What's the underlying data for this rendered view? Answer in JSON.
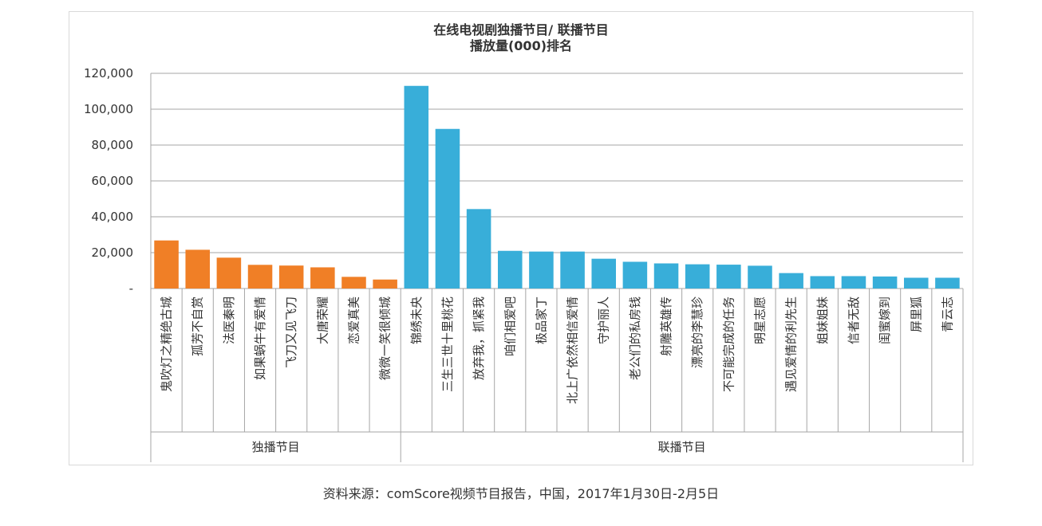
{
  "chart_data": {
    "type": "bar",
    "title": [
      "在线电视剧独播节目/ 联播节目",
      "播放量(000)排名"
    ],
    "y_ticks": [
      "-",
      "20,000",
      "40,000",
      "60,000",
      "80,000",
      "100,000",
      "120,000"
    ],
    "ylim": [
      0,
      120000
    ],
    "grid": true,
    "categories": [
      "鬼吹灯之精绝古城",
      "孤芳不自赏",
      "法医秦明",
      "如果蜗牛有爱情",
      "飞刀又见飞刀",
      "大唐荣耀",
      "恋爱真美",
      "微微一笑很倾城",
      "锦绣未央",
      "三生三世十里桃花",
      "放弃我，抓紧我",
      "咱们相爱吧",
      "极品家丁",
      "北上广依然相信爱情",
      "守护丽人",
      "老公们的私房钱",
      "射雕英雄传",
      "漂亮的李慧珍",
      "不可能完成的任务",
      "明星志愿",
      "遇见爱情的利先生",
      "姐妹姐妹",
      "信者无敌",
      "闺蜜嫁到",
      "屏里狐",
      "青云志"
    ],
    "values": [
      26800,
      21600,
      17200,
      13200,
      12800,
      11800,
      6500,
      5000,
      113000,
      89000,
      44300,
      21000,
      20600,
      20600,
      16600,
      14900,
      14000,
      13500,
      13300,
      12700,
      8600,
      6900,
      6900,
      6700,
      6000,
      6000
    ],
    "groups": [
      {
        "name": "独播节目",
        "count": 8,
        "color": "#f07f26"
      },
      {
        "name": "联播节目",
        "count": 18,
        "color": "#38aed9"
      }
    ]
  },
  "source": "资料来源：comScore视频节目报告，中国，2017年1月30日-2月5日"
}
